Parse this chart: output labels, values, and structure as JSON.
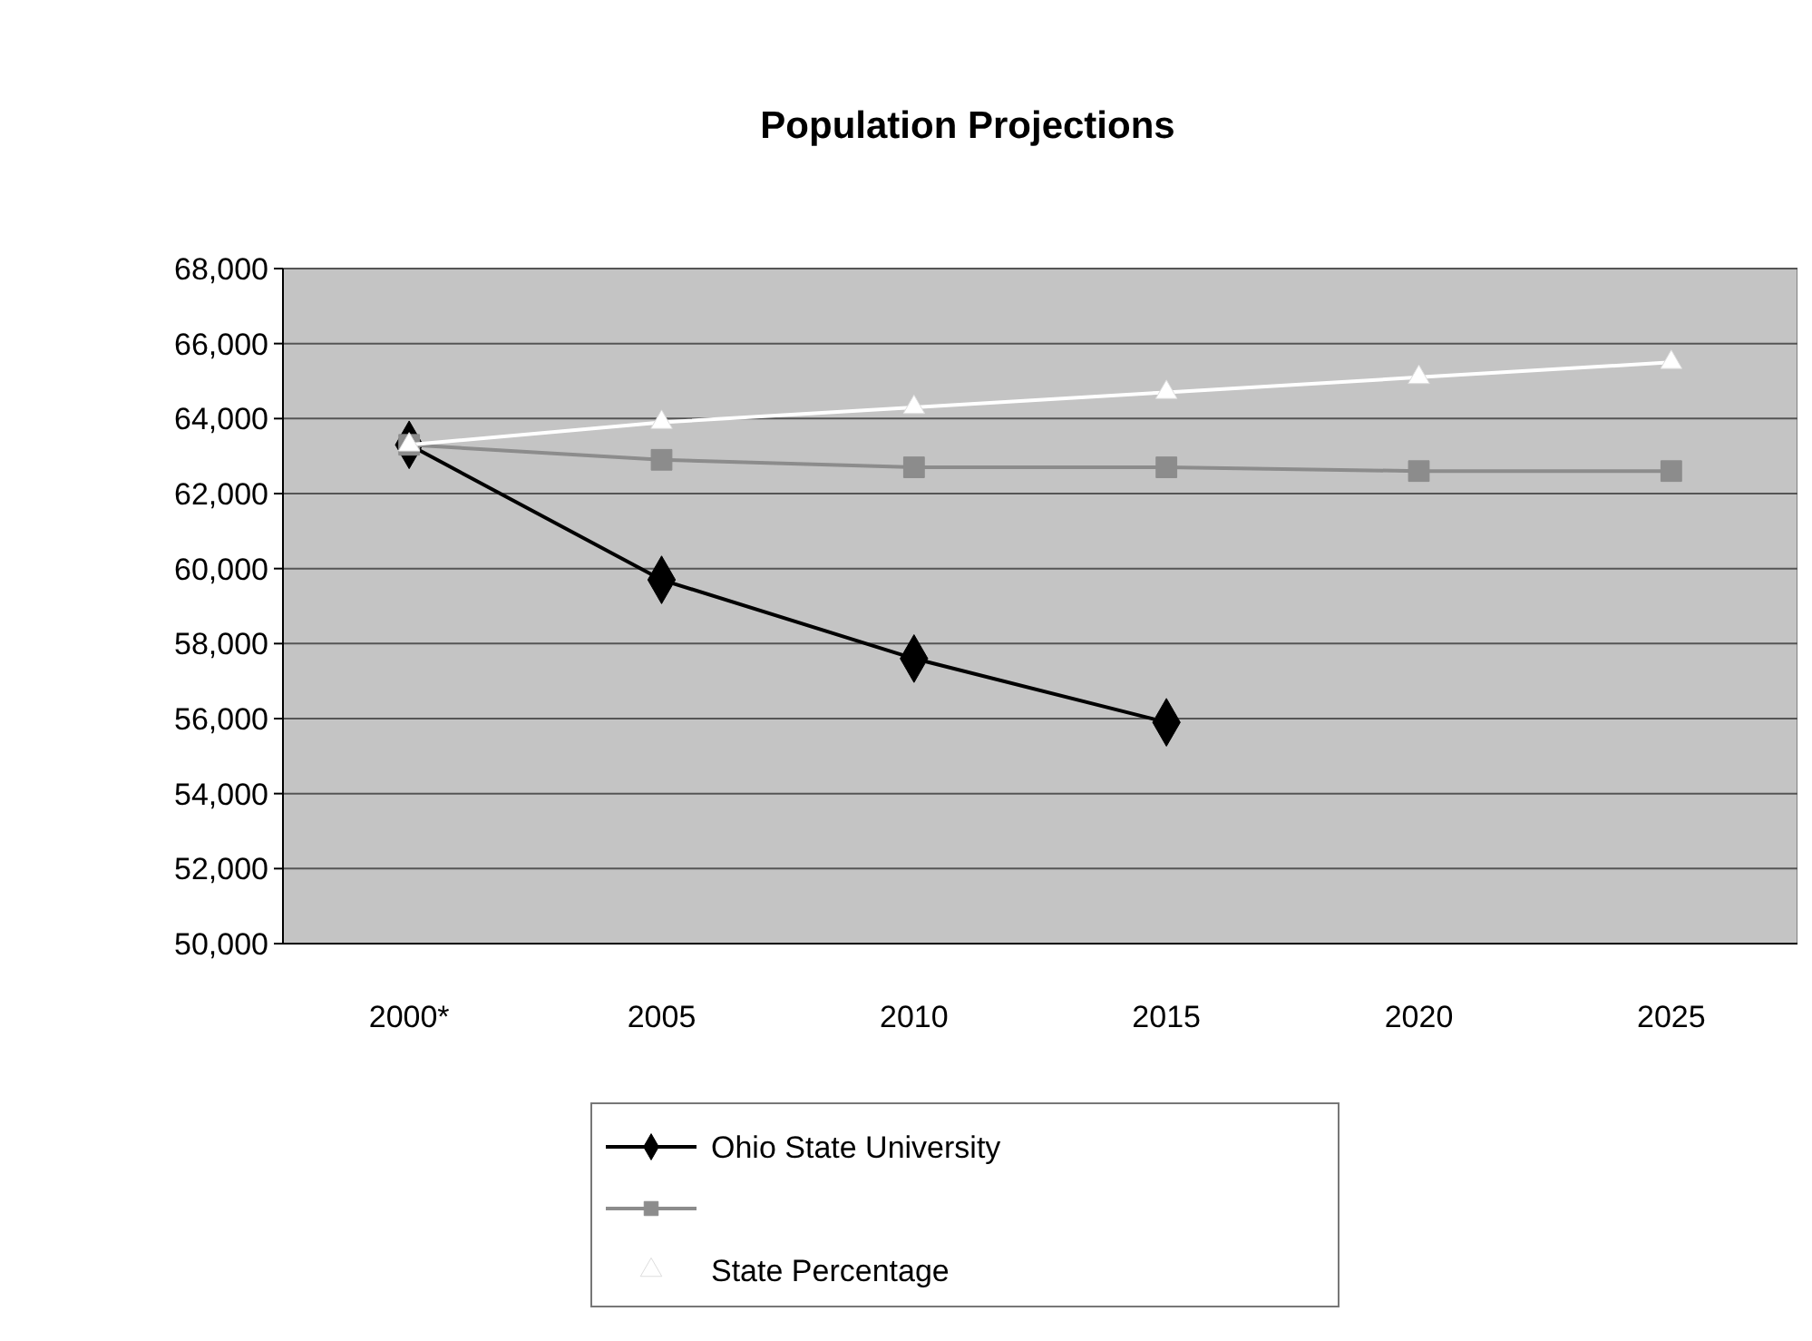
{
  "chart_data": {
    "type": "line",
    "title": "Population Projections",
    "categories": [
      "2000*",
      "2005",
      "2010",
      "2015",
      "2020",
      "2025"
    ],
    "series": [
      {
        "name": "Ohio State University",
        "color": "#000000",
        "marker": "diamond",
        "values": [
          63300,
          59700,
          57600,
          55900,
          null,
          null
        ]
      },
      {
        "color": "#8c8c8c",
        "marker": "square",
        "values": [
          63300,
          62900,
          62700,
          62700,
          62600,
          62600
        ]
      },
      {
        "name": "State Percentage",
        "color": "#ffffff",
        "marker": "triangle",
        "values": [
          63300,
          63900,
          64300,
          64700,
          65100,
          65500
        ]
      }
    ],
    "ylim": [
      50000,
      68000
    ],
    "yticks": [
      {
        "value": 50000,
        "label": "50,000"
      },
      {
        "value": 52000,
        "label": "52,000"
      },
      {
        "value": 54000,
        "label": "54,000"
      },
      {
        "value": 56000,
        "label": "56,000"
      },
      {
        "value": 58000,
        "label": "58,000"
      },
      {
        "value": 60000,
        "label": "60,000"
      },
      {
        "value": 62000,
        "label": "62,000"
      },
      {
        "value": 64000,
        "label": "64,000"
      },
      {
        "value": 66000,
        "label": "66,000"
      },
      {
        "value": 68000,
        "label": "68,000"
      }
    ],
    "grid": "y",
    "legend": "bottom"
  }
}
